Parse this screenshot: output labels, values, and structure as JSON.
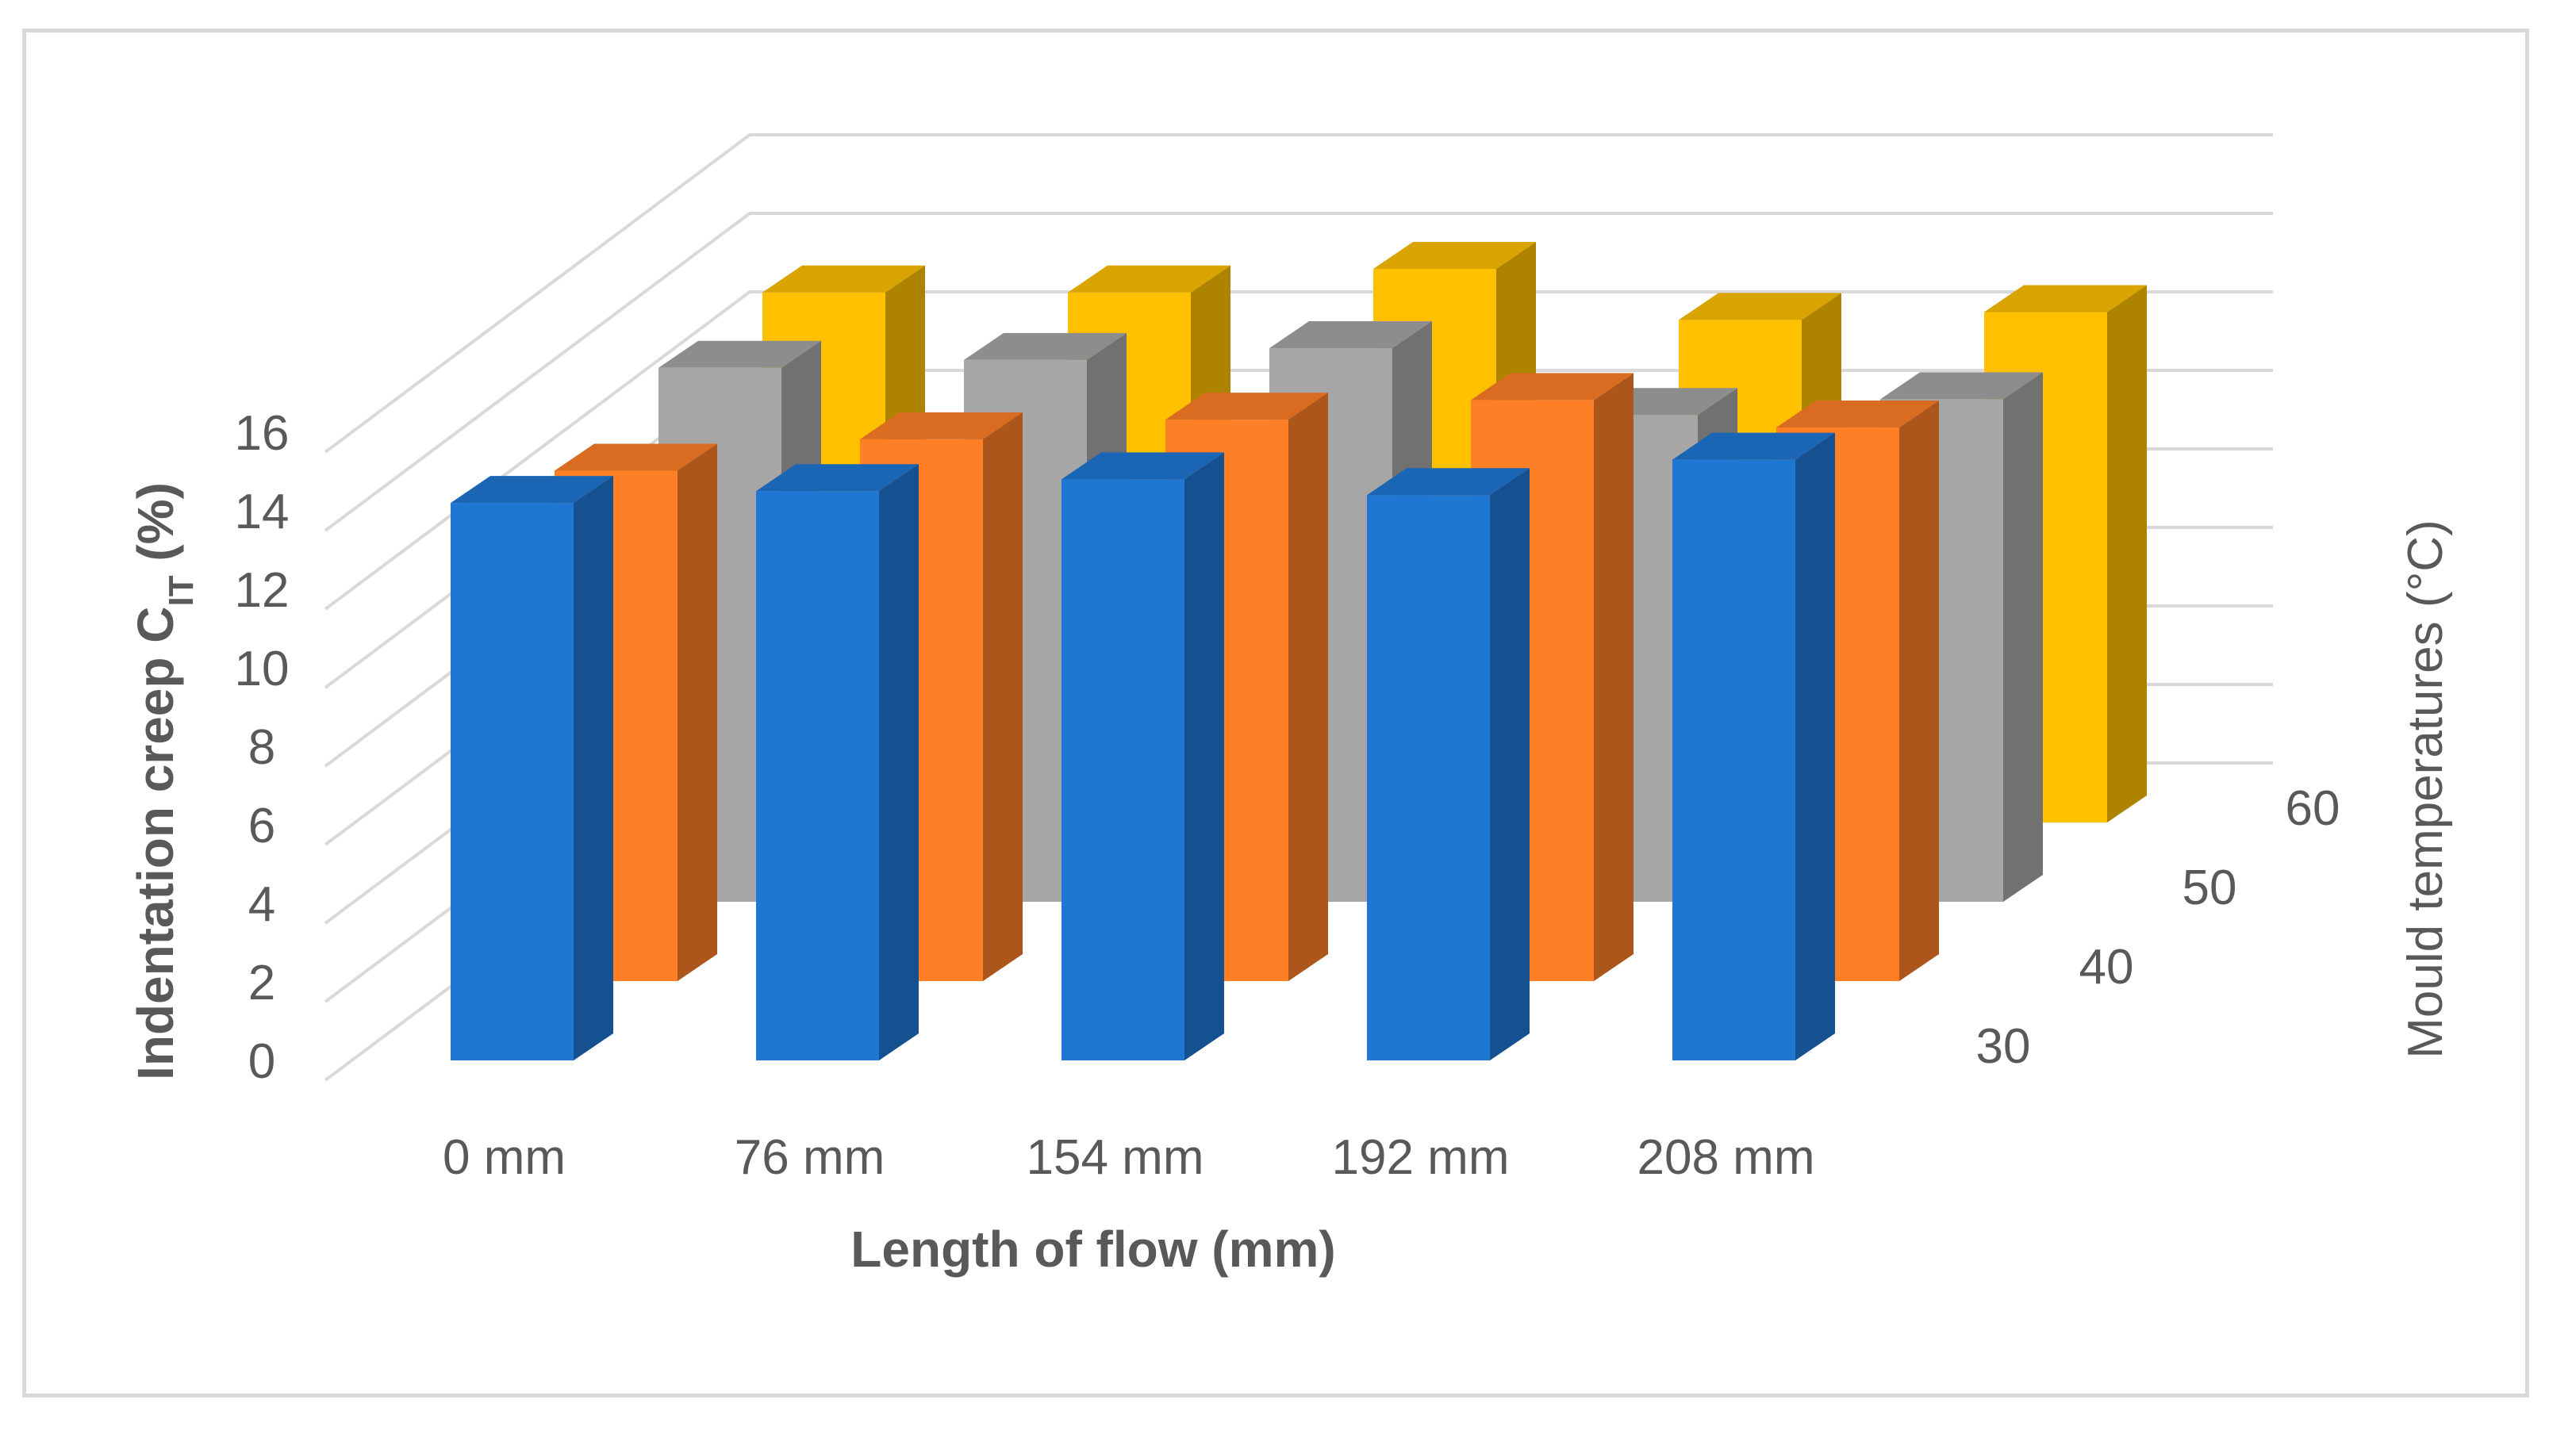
{
  "chart_data": {
    "type": "bar",
    "subtype": "3d-column",
    "categories": [
      "0 mm",
      "76 mm",
      "154 mm",
      "192 mm",
      "208 mm"
    ],
    "series": [
      {
        "name": "30",
        "color": "#1f77d4",
        "values": [
          14.2,
          14.5,
          14.8,
          14.4,
          15.3
        ]
      },
      {
        "name": "40",
        "color": "#ff7f27",
        "values": [
          13.0,
          13.8,
          14.3,
          14.8,
          14.1
        ]
      },
      {
        "name": "50",
        "color": "#a6a6a6",
        "values": [
          13.6,
          13.8,
          14.1,
          12.4,
          12.8
        ]
      },
      {
        "name": "60",
        "color": "#ffc000",
        "values": [
          13.5,
          13.5,
          14.1,
          12.8,
          13.0
        ]
      }
    ],
    "xlabel": "Length of flow (mm)",
    "ylabel_main": "Indentation creep C",
    "ylabel_sub": "IT",
    "ylabel_unit": " (%)",
    "zlabel": "Mould temperatures (°C)",
    "yticks": [
      0,
      2,
      4,
      6,
      8,
      10,
      12,
      14,
      16
    ],
    "ylim": [
      0,
      16
    ],
    "zticks": [
      "30",
      "40",
      "50",
      "60"
    ],
    "grid": true
  }
}
